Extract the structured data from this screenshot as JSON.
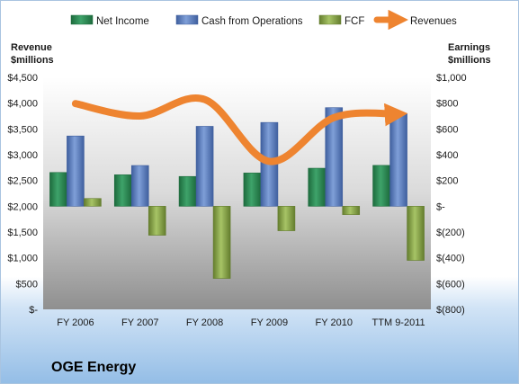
{
  "company": "OGE Energy",
  "colors": {
    "net_income": "#2e8b57",
    "cash_from_operations": "#5b7fbf",
    "fcf": "#8aa64a",
    "revenues": "#ee8430"
  },
  "chart_data": {
    "type": "bar",
    "categories": [
      "FY 2006",
      "FY 2007",
      "FY 2008",
      "FY 2009",
      "FY 2010",
      "TTM 9-2011"
    ],
    "series": [
      {
        "name": "Net Income",
        "type": "bar",
        "axis": "right",
        "values": [
          262,
          244,
          231,
          258,
          295,
          317
        ]
      },
      {
        "name": "Cash from Operations",
        "type": "bar",
        "axis": "right",
        "values": [
          545,
          316,
          620,
          650,
          765,
          716
        ]
      },
      {
        "name": "FCF",
        "type": "bar",
        "axis": "right",
        "values": [
          60,
          -225,
          -560,
          -190,
          -65,
          -420
        ]
      },
      {
        "name": "Revenues",
        "type": "line",
        "axis": "left",
        "values": [
          3990,
          3750,
          4070,
          2870,
          3720,
          3790
        ]
      }
    ],
    "left_axis": {
      "label_line1": "Revenue",
      "label_line2": "$millions",
      "min": 0,
      "max": 4500,
      "step": 500,
      "ticks": [
        "$-",
        "$500",
        "$1,000",
        "$1,500",
        "$2,000",
        "$2,500",
        "$3,000",
        "$3,500",
        "$4,000",
        "$4,500"
      ]
    },
    "right_axis": {
      "label_line1": "Earnings",
      "label_line2": "$millions",
      "min": -800,
      "max": 1000,
      "step": 200,
      "ticks": [
        "$(800)",
        "$(600)",
        "$(400)",
        "$(200)",
        "$-",
        "$200",
        "$400",
        "$600",
        "$800",
        "$1,000"
      ]
    },
    "legend": {
      "position": "top",
      "items": [
        "Net Income",
        "Cash from Operations",
        "FCF",
        "Revenues"
      ]
    }
  }
}
